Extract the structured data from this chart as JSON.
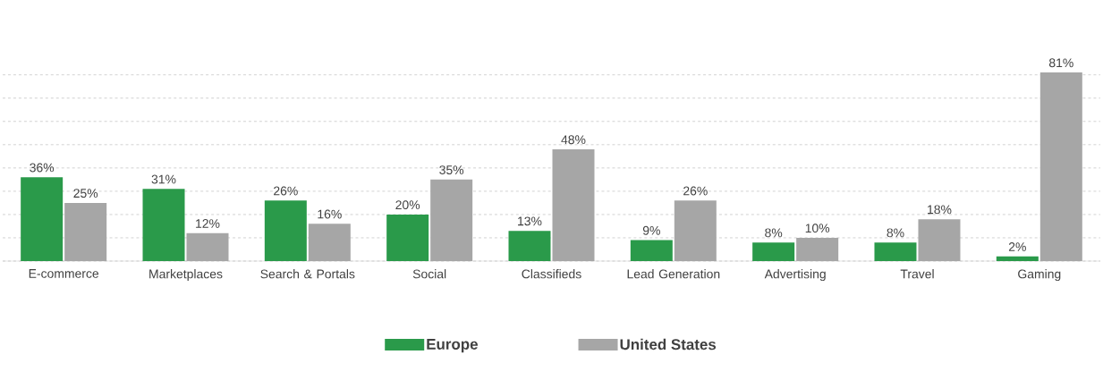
{
  "chart_data": {
    "type": "bar",
    "categories": [
      "E-commerce",
      "Marketplaces",
      "Search & Portals",
      "Social",
      "Classifieds",
      "Lead Generation",
      "Advertising",
      "Travel",
      "Gaming"
    ],
    "series": [
      {
        "name": "Europe",
        "color": "#2a9a4a",
        "values": [
          36,
          31,
          26,
          20,
          13,
          9,
          8,
          8,
          2
        ],
        "value_labels": [
          "36%",
          "31%",
          "26%",
          "20%",
          "13%",
          "9%",
          "8%",
          "8%",
          "2%"
        ]
      },
      {
        "name": "United States",
        "color": "#a6a6a6",
        "values": [
          25,
          12,
          16,
          35,
          48,
          26,
          10,
          18,
          81
        ],
        "value_labels": [
          "25%",
          "12%",
          "16%",
          "35%",
          "48%",
          "26%",
          "10%",
          "18%",
          "81%"
        ]
      }
    ],
    "grid": "y",
    "legend": "bottom"
  }
}
